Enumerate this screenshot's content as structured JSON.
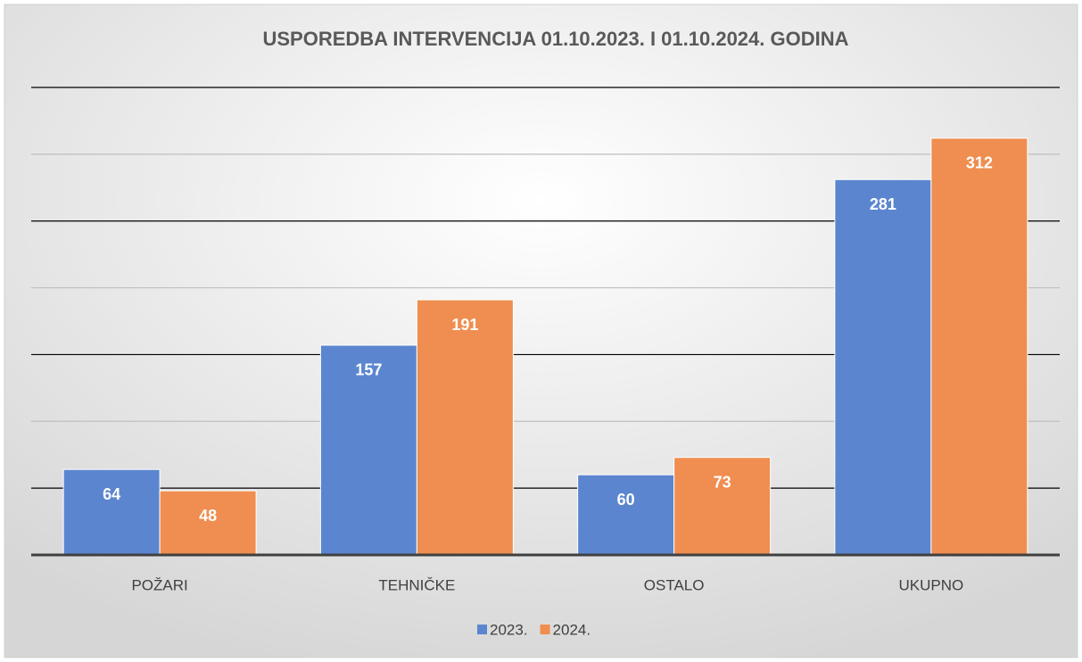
{
  "chart_data": {
    "type": "bar",
    "title": "USPOREDBA INTERVENCIJA 01.10.2023. I 01.10.2024. GODINA",
    "categories": [
      "POŽARI",
      "TEHNIČKE",
      "OSTALO",
      "UKUPNO"
    ],
    "series": [
      {
        "name": "2023.",
        "color": "#5b86cf",
        "values": [
          64,
          157,
          60,
          281
        ]
      },
      {
        "name": "2024.",
        "color": "#ef8e50",
        "values": [
          48,
          191,
          73,
          312
        ]
      }
    ],
    "ylim": [
      0,
      350
    ],
    "yticks": [
      0,
      50,
      100,
      150,
      200,
      250,
      300,
      350
    ],
    "grid": true,
    "legend": "bottom"
  }
}
